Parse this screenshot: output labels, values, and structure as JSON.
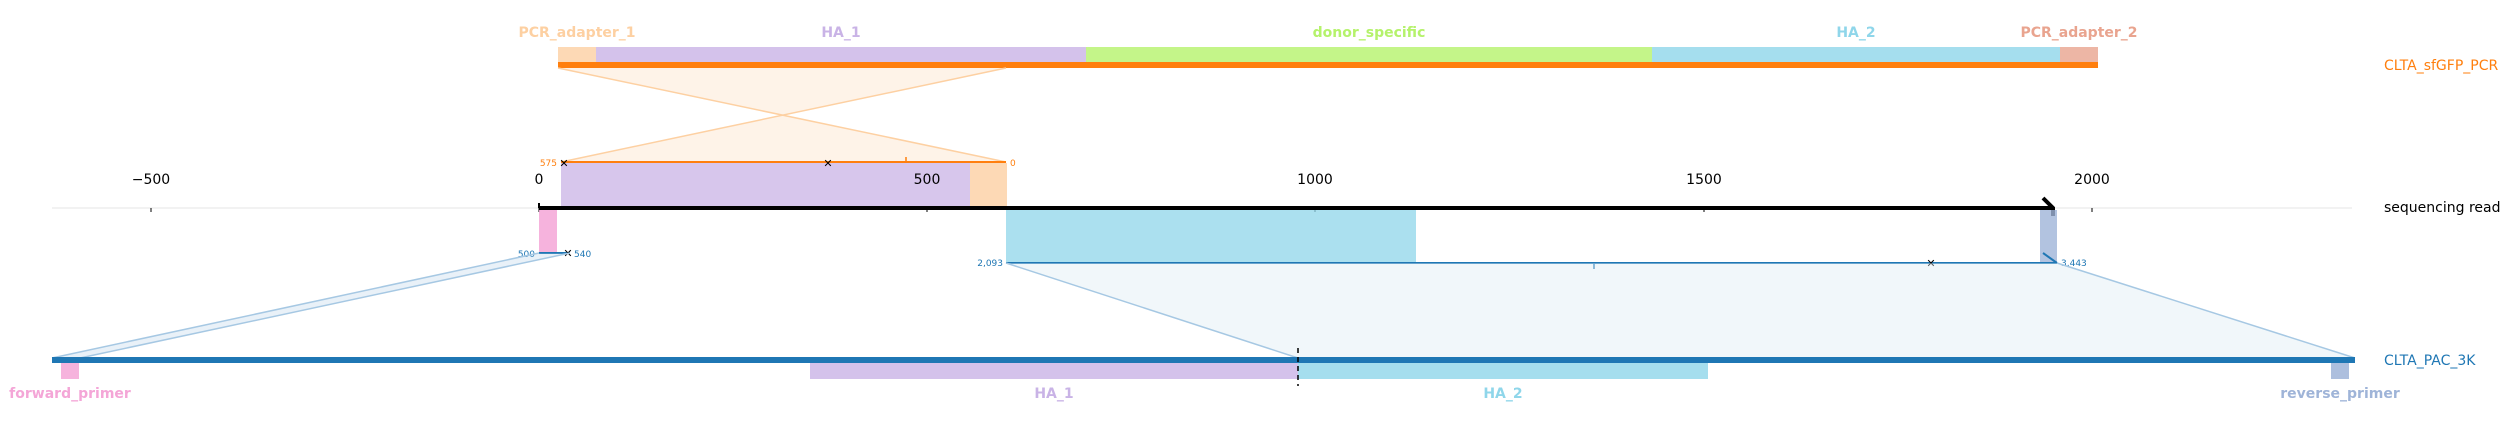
{
  "top_reference": {
    "name": "CLTA_sfGFP_PCR",
    "color": "#ff7f0e",
    "features": [
      {
        "label": "PCR_adapter_1",
        "color": "#fdd0a2"
      },
      {
        "label": "HA_1",
        "color": "#c9b3e6"
      },
      {
        "label": "donor_specific",
        "color": "#b5f26b"
      },
      {
        "label": "HA_2",
        "color": "#8fd6ea"
      },
      {
        "label": "PCR_adapter_2",
        "color": "#e9a48f"
      }
    ],
    "alignment_start_label": "575",
    "alignment_end_label": "0"
  },
  "read": {
    "name": "sequencing read",
    "axis_ticks": [
      "−500",
      "0",
      "500",
      "1000",
      "1500",
      "2000"
    ]
  },
  "bottom_reference": {
    "name": "CLTA_PAC_3K",
    "color": "#1f77b4",
    "features": [
      {
        "label": "forward_primer",
        "color": "#f4a6d7"
      },
      {
        "label": "HA_1",
        "color": "#c9b3e6"
      },
      {
        "label": "HA_2",
        "color": "#8fd6ea"
      },
      {
        "label": "reverse_primer",
        "color": "#9fb4d8"
      }
    ],
    "alignment1_start_label": "500",
    "alignment1_end_label": "540",
    "alignment2_start_label": "2,093",
    "alignment2_end_label": "3,443"
  }
}
